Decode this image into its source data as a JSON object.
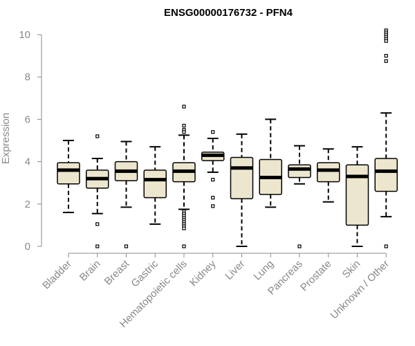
{
  "chart_data": {
    "type": "box",
    "title": "ENSG00000176732 - PFN4",
    "xlabel": "",
    "ylabel": "Expression",
    "ylim": [
      0,
      10.3
    ],
    "y_ticks": [
      "0",
      "2",
      "4",
      "6",
      "8",
      "10"
    ],
    "box_fill": "#ede6ce",
    "categories": [
      "Bladder",
      "Brain",
      "Breast",
      "Gastric",
      "Hematopoietic cells",
      "Kidney",
      "Liver",
      "Lung",
      "Pancreas",
      "Prostate",
      "Skin",
      "Unknown / Other"
    ],
    "boxes": [
      {
        "category": "Bladder",
        "whisker_low": 1.6,
        "q1": 2.95,
        "median": 3.6,
        "q3": 3.95,
        "whisker_high": 5.0,
        "outliers": []
      },
      {
        "category": "Brain",
        "whisker_low": 1.55,
        "q1": 2.75,
        "median": 3.2,
        "q3": 3.6,
        "whisker_high": 4.15,
        "outliers": [
          5.2,
          1.05,
          0.0
        ]
      },
      {
        "category": "Breast",
        "whisker_low": 1.85,
        "q1": 3.1,
        "median": 3.55,
        "q3": 4.0,
        "whisker_high": 4.95,
        "outliers": [
          0.0
        ]
      },
      {
        "category": "Gastric",
        "whisker_low": 1.05,
        "q1": 2.3,
        "median": 3.15,
        "q3": 3.6,
        "whisker_high": 4.7,
        "outliers": []
      },
      {
        "category": "Hematopoietic cells",
        "whisker_low": 1.75,
        "q1": 3.05,
        "median": 3.55,
        "q3": 3.95,
        "whisker_high": 5.25,
        "outliers": [
          6.6,
          5.7,
          5.5,
          5.4,
          1.65,
          1.55,
          1.45,
          1.35,
          1.25,
          1.15,
          1.05,
          0.95,
          0.85,
          0.0
        ]
      },
      {
        "category": "Kidney",
        "whisker_low": 3.5,
        "q1": 4.05,
        "median": 4.3,
        "q3": 4.45,
        "whisker_high": 5.1,
        "outliers": [
          5.4,
          3.15,
          2.3,
          1.9
        ]
      },
      {
        "category": "Liver",
        "whisker_low": 0.0,
        "q1": 2.25,
        "median": 3.7,
        "q3": 4.2,
        "whisker_high": 5.3,
        "outliers": []
      },
      {
        "category": "Lung",
        "whisker_low": 1.85,
        "q1": 2.45,
        "median": 3.25,
        "q3": 4.1,
        "whisker_high": 6.0,
        "outliers": []
      },
      {
        "category": "Pancreas",
        "whisker_low": 2.95,
        "q1": 3.25,
        "median": 3.65,
        "q3": 3.85,
        "whisker_high": 4.75,
        "outliers": [
          0.0
        ]
      },
      {
        "category": "Prostate",
        "whisker_low": 2.1,
        "q1": 3.05,
        "median": 3.6,
        "q3": 3.95,
        "whisker_high": 4.6,
        "outliers": []
      },
      {
        "category": "Skin",
        "whisker_low": 0.0,
        "q1": 1.0,
        "median": 3.3,
        "q3": 3.85,
        "whisker_high": 4.7,
        "outliers": []
      },
      {
        "category": "Unknown / Other",
        "whisker_low": 1.4,
        "q1": 2.6,
        "median": 3.55,
        "q3": 4.15,
        "whisker_high": 6.3,
        "outliers": [
          10.2,
          10.1,
          10.0,
          9.9,
          9.8,
          9.7,
          9.0,
          8.75,
          0.0
        ]
      }
    ]
  }
}
